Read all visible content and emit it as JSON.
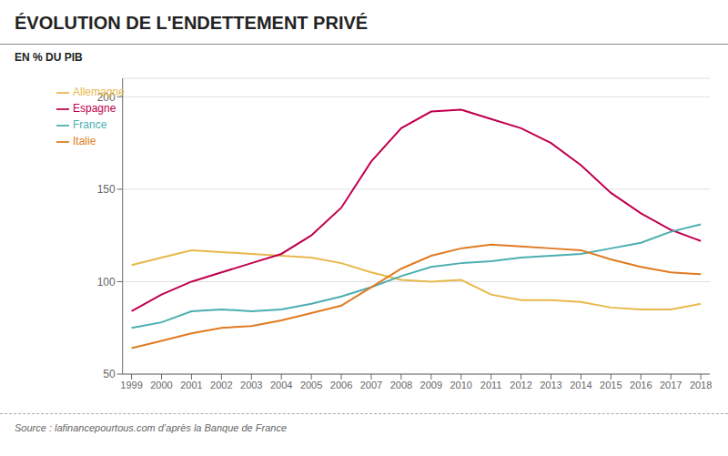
{
  "chart_data": {
    "type": "line",
    "title": "ÉVOLUTION DE L'ENDETTEMENT PRIVÉ",
    "subtitle": "EN % DU PIB",
    "annotations": [
      "Source : lafinancepourtous.com d’après la Banque de France"
    ],
    "x": [
      1999,
      2000,
      2001,
      2002,
      2003,
      2004,
      2005,
      2006,
      2007,
      2008,
      2009,
      2010,
      2011,
      2012,
      2013,
      2014,
      2015,
      2016,
      2017,
      2018
    ],
    "xlim": [
      1998.7,
      2018.3
    ],
    "xticks": [
      1999,
      2000,
      2001,
      2002,
      2003,
      2004,
      2005,
      2006,
      2007,
      2008,
      2009,
      2010,
      2011,
      2012,
      2013,
      2014,
      2015,
      2016,
      2017,
      2018
    ],
    "series": [
      {
        "name": "Allemagne",
        "color": "#e8b84b",
        "values": [
          109,
          113,
          117,
          116,
          115,
          114,
          113,
          110,
          105,
          101,
          100,
          101,
          93,
          90,
          90,
          89,
          86,
          85,
          85,
          88
        ]
      },
      {
        "name": "Espagne",
        "color": "#c0004e",
        "values": [
          84,
          93,
          100,
          105,
          110,
          115,
          125,
          140,
          165,
          183,
          192,
          193,
          188,
          183,
          175,
          163,
          148,
          137,
          128,
          122
        ]
      },
      {
        "name": "France",
        "color": "#4caeb0",
        "values": [
          75,
          78,
          84,
          85,
          84,
          85,
          88,
          92,
          97,
          103,
          108,
          110,
          111,
          113,
          114,
          115,
          118,
          121,
          127,
          131
        ]
      },
      {
        "name": "Italie",
        "color": "#e07b20",
        "values": [
          64,
          68,
          72,
          75,
          76,
          79,
          83,
          87,
          97,
          107,
          114,
          118,
          120,
          119,
          118,
          117,
          112,
          108,
          105,
          104
        ]
      }
    ],
    "ylim": [
      50,
      210
    ],
    "yticks": [
      50,
      100,
      150,
      200
    ],
    "grid": true,
    "legend": "upper left"
  }
}
